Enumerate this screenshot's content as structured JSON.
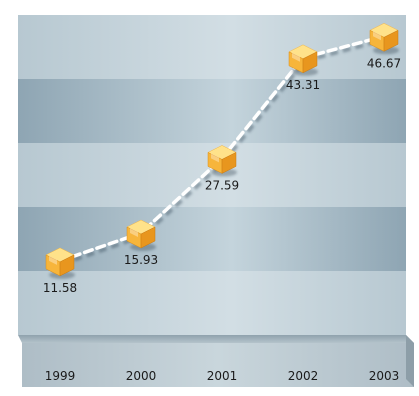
{
  "chart_data": {
    "type": "line",
    "categories": [
      "1999",
      "2000",
      "2001",
      "2002",
      "2003"
    ],
    "values": [
      11.58,
      15.93,
      27.59,
      43.31,
      46.67
    ],
    "value_labels": [
      "11.58",
      "15.93",
      "27.59",
      "43.31",
      "46.67"
    ],
    "title": "",
    "xlabel": "",
    "ylabel": "",
    "ylim": [
      0,
      50
    ],
    "grid": true,
    "legend": "none",
    "marker": "3d-box-icon",
    "line_style": "dashed",
    "colors": {
      "band_light": "#c3d2da",
      "band_dark": "#9db2bf",
      "line": "#ffffff",
      "marker_top": "#ffe28a",
      "marker_left": "#f7b53b",
      "marker_right": "#e8961e",
      "axis_plate": "#a4b4be"
    }
  }
}
